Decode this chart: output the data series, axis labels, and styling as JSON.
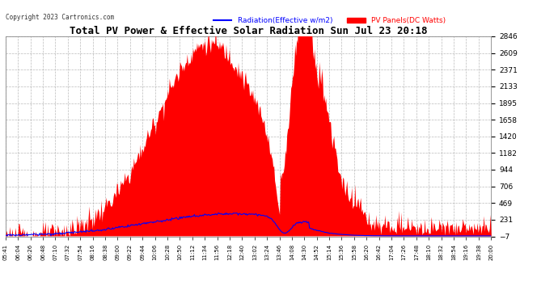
{
  "title": "Total PV Power & Effective Solar Radiation Sun Jul 23 20:18",
  "copyright": "Copyright 2023 Cartronics.com",
  "legend_radiation": "Radiation(Effective w/m2)",
  "legend_pv": "PV Panels(DC Watts)",
  "radiation_color": "#0000ff",
  "pv_color": "#ff0000",
  "bg_color": "#ffffff",
  "plot_bg_color": "#ffffff",
  "title_color": "#000000",
  "tick_color": "#000000",
  "grid_color": "#aaaaaa",
  "ymin": -6.8,
  "ymax": 2846.4,
  "yticks": [
    2846.4,
    2608.6,
    2370.9,
    2133.1,
    1895.3,
    1657.6,
    1419.8,
    1182.0,
    944.3,
    706.5,
    468.7,
    231.0,
    -6.8
  ],
  "xtick_labels": [
    "05:41",
    "06:04",
    "06:26",
    "06:48",
    "07:10",
    "07:32",
    "07:54",
    "08:16",
    "08:38",
    "09:00",
    "09:22",
    "09:44",
    "10:06",
    "10:28",
    "10:50",
    "11:12",
    "11:34",
    "11:56",
    "12:18",
    "12:40",
    "13:02",
    "13:24",
    "13:46",
    "14:08",
    "14:30",
    "14:52",
    "15:14",
    "15:36",
    "15:58",
    "16:20",
    "16:42",
    "17:04",
    "17:26",
    "17:48",
    "18:10",
    "18:32",
    "18:54",
    "19:16",
    "19:38",
    "20:00"
  ],
  "figsize": [
    6.9,
    3.75
  ],
  "dpi": 100
}
